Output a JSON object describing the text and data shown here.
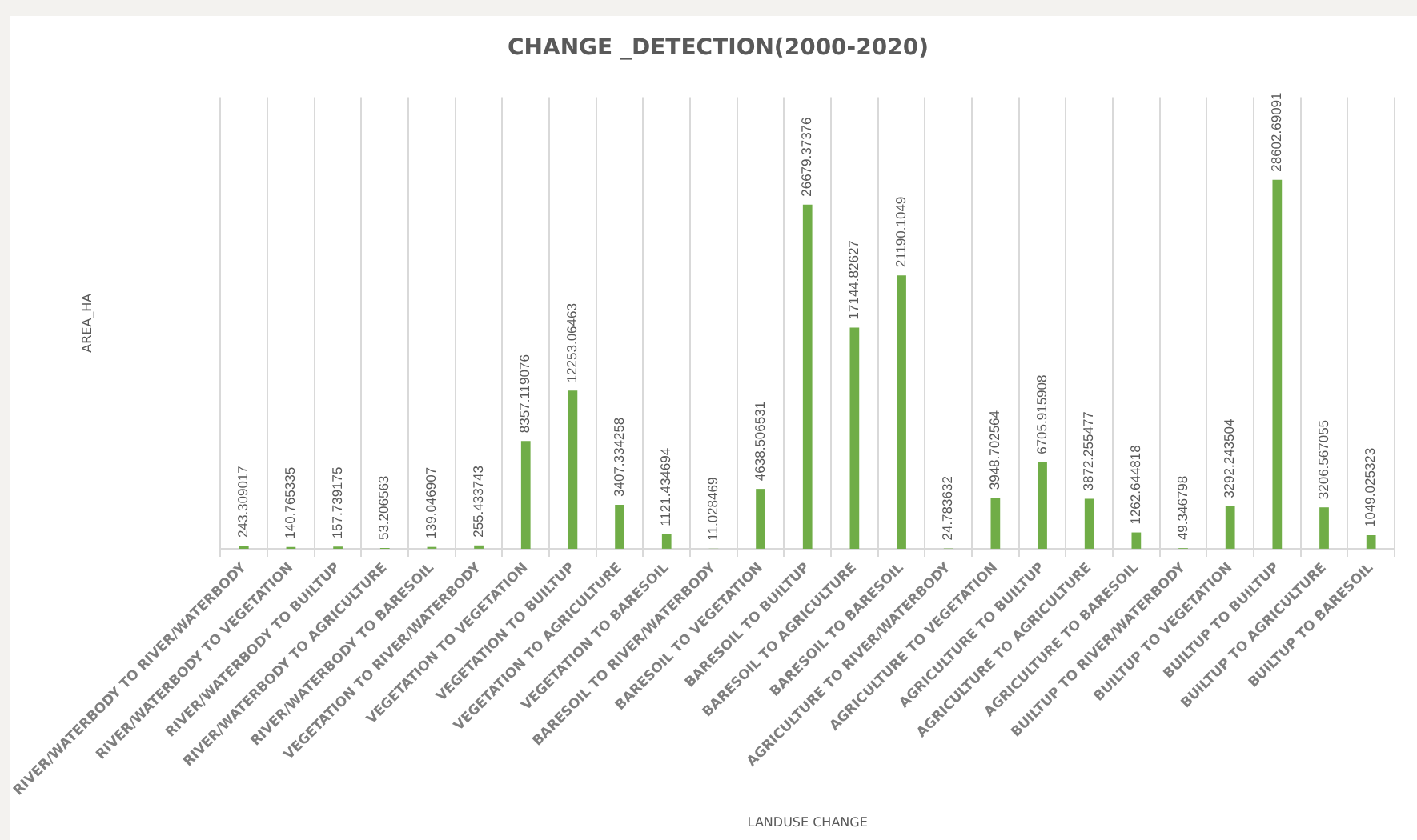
{
  "chart_data": {
    "type": "bar",
    "title": "CHANGE _DETECTION(2000-2020)",
    "xlabel": "LANDUSE CHANGE",
    "ylabel": "AREA_HA",
    "categories": [
      "RIVER/WATERBODY TO RIVER/WATERBODY",
      "RIVER/WATERBODY TO VEGETATION",
      "RIVER/WATERBODY TO BUILTUP",
      "RIVER/WATERBODY TO AGRICULTURE",
      "RIVER/WATERBODY TO BARESOIL",
      "VEGETATION TO RIVER/WATERBODY",
      "VEGETATION TO VEGETATION",
      "VEGETATION TO BUILTUP",
      "VEGETATION TO AGRICULTURE",
      "VEGETATION TO BARESOIL",
      "BARESOIL TO RIVER/WATERBODY",
      "BARESOIL TO VEGETATION",
      "BARESOIL TO BUILTUP",
      "BARESOIL TO AGRICULTURE",
      "BARESOIL TO BARESOIL",
      "AGRICULTURE TO RIVER/WATERBODY",
      "AGRICULTURE TO VEGETATION",
      "AGRICULTURE TO BUILTUP",
      "AGRICULTURE TO AGRICULTURE",
      "AGRICULTURE TO BARESOIL",
      "BUILTUP TO RIVER/WATERBODY",
      "BUILTUP TO VEGETATION",
      "BUILTUP TO BUILTUP",
      "BUILTUP TO AGRICULTURE",
      "BUILTUP TO BARESOIL"
    ],
    "values": [
      243.309017,
      140.765335,
      157.739175,
      53.206563,
      139.046907,
      255.433743,
      8357.119076,
      12253.06463,
      3407.334258,
      1121.434694,
      11.028469,
      4638.506531,
      26679.37376,
      17144.82627,
      21190.1049,
      24.783632,
      3948.702564,
      6705.915908,
      3872.255477,
      1262.644818,
      49.346798,
      3292.243504,
      28602.69091,
      3206.567055,
      1049.025323
    ],
    "color": "#70ad47",
    "data_labels": true,
    "grid": "x",
    "tick_labels": "x"
  }
}
